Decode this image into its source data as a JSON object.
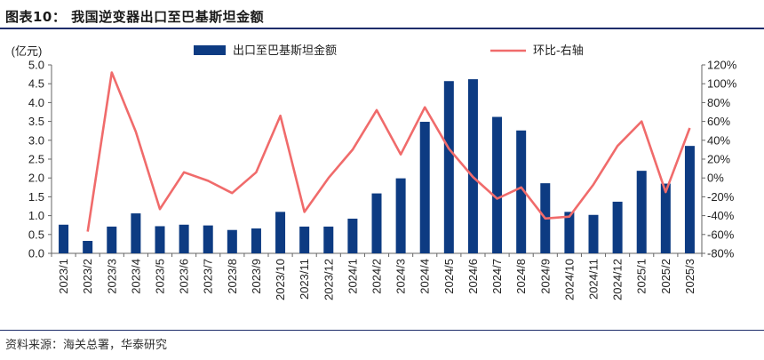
{
  "title": "图表10：  我国逆变器出口至巴基斯坦金额",
  "source": "资料来源：海关总署，华泰研究",
  "colors": {
    "bar": "#0d3b82",
    "line": "#f06b6b",
    "axis": "#666666",
    "title_rule": "#1f2d6b"
  },
  "chart_data": {
    "type": "bar",
    "title": "我国逆变器出口至巴基斯坦金额",
    "ylabel_left": "(亿元)",
    "ylim_left": [
      0,
      5.0
    ],
    "yticks_left": [
      "0.0",
      "0.5",
      "1.0",
      "1.5",
      "2.0",
      "2.5",
      "3.0",
      "3.5",
      "4.0",
      "4.5",
      "5.0"
    ],
    "ylim_right": [
      -80,
      120
    ],
    "yticks_right": [
      "-80%",
      "-60%",
      "-40%",
      "-20%",
      "0%",
      "20%",
      "40%",
      "60%",
      "80%",
      "100%",
      "120%"
    ],
    "categories": [
      "2023/1",
      "2023/2",
      "2023/3",
      "2023/4",
      "2023/5",
      "2023/6",
      "2023/7",
      "2023/8",
      "2023/9",
      "2023/10",
      "2023/11",
      "2023/12",
      "2024/1",
      "2024/2",
      "2024/3",
      "2024/4",
      "2024/5",
      "2024/6",
      "2024/7",
      "2024/8",
      "2024/9",
      "2024/10",
      "2024/11",
      "2024/12",
      "2025/1",
      "2025/2",
      "2025/3"
    ],
    "series": [
      {
        "name": "出口至巴基斯坦金额",
        "type": "bar",
        "axis": "left",
        "values": [
          0.76,
          0.33,
          0.71,
          1.06,
          0.72,
          0.76,
          0.74,
          0.62,
          0.66,
          1.1,
          0.71,
          0.71,
          0.92,
          1.59,
          1.99,
          3.49,
          4.57,
          4.62,
          3.62,
          3.26,
          1.86,
          1.1,
          1.02,
          1.37,
          2.19,
          1.85,
          2.85
        ]
      },
      {
        "name": "环比-右轴",
        "type": "line",
        "axis": "right",
        "values": [
          null,
          -57,
          112,
          49,
          -33,
          6,
          -3,
          -16,
          6,
          66,
          -36,
          0,
          30,
          72,
          25,
          75,
          31,
          1,
          -22,
          -10,
          -43,
          -41,
          -7,
          34,
          60,
          -15,
          53
        ]
      }
    ]
  }
}
